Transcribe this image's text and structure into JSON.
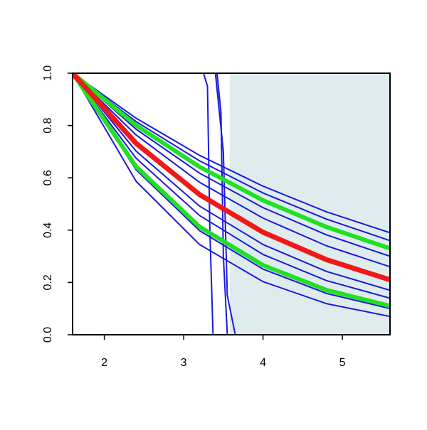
{
  "chart_data": {
    "type": "line",
    "x": [
      1.6,
      2.4,
      3.2,
      4.0,
      4.8,
      5.6
    ],
    "xlim": [
      1.6,
      5.6
    ],
    "ylim": [
      0,
      1
    ],
    "xticks": [
      2,
      3,
      4,
      5
    ],
    "yticks": [
      {
        "value": 0,
        "label": "0.0"
      },
      0.2,
      0.4,
      0.6,
      0.8,
      {
        "value": 1,
        "label": "1.0"
      }
    ],
    "shade": {
      "xlim": [
        3.58,
        5.6
      ],
      "color": "#dfeced"
    },
    "series": [
      {
        "color": "#1a1adf",
        "line_width": 2,
        "values": [
          1,
          0.828,
          0.686,
          0.568,
          0.47,
          0.39
        ]
      },
      {
        "color": "#1a1adf",
        "line_width": 2,
        "values": [
          1,
          0.815,
          0.665,
          0.542,
          0.442,
          0.36
        ]
      },
      {
        "color": "#1a1adf",
        "line_width": 2,
        "values": [
          1,
          0.786,
          0.618,
          0.486,
          0.382,
          0.3
        ]
      },
      {
        "color": "#1a1adf",
        "line_width": 2,
        "values": [
          1,
          0.764,
          0.583,
          0.446,
          0.34,
          0.26
        ]
      },
      {
        "color": "#1a1adf",
        "line_width": 2,
        "values": [
          1,
          0.702,
          0.492,
          0.345,
          0.242,
          0.17
        ]
      },
      {
        "color": "#1a1adf",
        "line_width": 2,
        "values": [
          1,
          0.675,
          0.456,
          0.307,
          0.207,
          0.14
        ]
      },
      {
        "color": "#1a1adf",
        "line_width": 2,
        "values": [
          1,
          0.631,
          0.398,
          0.251,
          0.158,
          0.1
        ]
      },
      {
        "color": "#1a1adf",
        "line_width": 2,
        "values": [
          1,
          0.587,
          0.345,
          0.203,
          0.119,
          0.07
        ]
      },
      {
        "color": "#1a1adf",
        "line_width": 2,
        "x": [
          1.6,
          3.25,
          3.3,
          3.33,
          3.37,
          5.6
        ],
        "values": [
          1,
          1,
          0.95,
          0.4,
          0,
          0
        ]
      },
      {
        "color": "#1a1adf",
        "line_width": 2,
        "x": [
          1.6,
          3.42,
          3.47,
          3.5,
          3.55,
          5.6
        ],
        "values": [
          1,
          1,
          0.85,
          0.3,
          0,
          0
        ]
      },
      {
        "color": "#1a1adf",
        "line_width": 2,
        "x": [
          1.6,
          3.4,
          3.5,
          3.55,
          3.65,
          5.6
        ],
        "values": [
          1,
          1,
          0.7,
          0.15,
          0,
          0
        ]
      },
      {
        "color": "#22e022",
        "line_width": 6,
        "values": [
          1,
          0.801,
          0.642,
          0.514,
          0.412,
          0.33
        ]
      },
      {
        "color": "#22e022",
        "line_width": 6,
        "values": [
          1,
          0.643,
          0.413,
          0.266,
          0.171,
          0.11
        ]
      },
      {
        "color": "#f01818",
        "line_width": 7,
        "values": [
          1,
          0.732,
          0.536,
          0.392,
          0.287,
          0.21
        ]
      }
    ]
  }
}
